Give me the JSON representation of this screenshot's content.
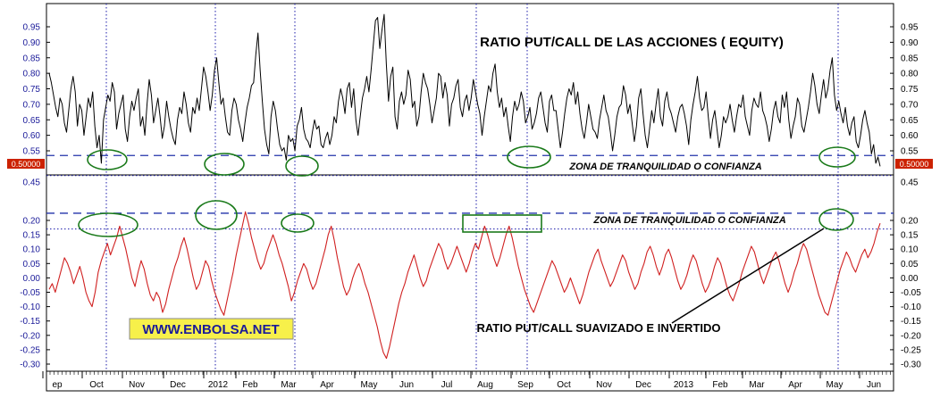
{
  "chart_data": [
    {
      "type": "line",
      "title": "RATIO PUT/CALL DE LAS ACCIONES ( EQUITY)",
      "y_ticks": [
        "0.95",
        "0.90",
        "0.85",
        "0.80",
        "0.75",
        "0.70",
        "0.65",
        "0.60",
        "0.55"
      ],
      "y_tick_extra": "0.45",
      "ylim": [
        0.47,
        0.99
      ],
      "current_value_label": "0.50000",
      "reference_line_label": "ZONA DE TRANQUILIDAD O CONFIANZA",
      "reference_line_value": 0.535,
      "series": [
        {
          "color": "#000000",
          "values": [
            0.8,
            0.77,
            0.73,
            0.69,
            0.66,
            0.72,
            0.7,
            0.64,
            0.61,
            0.68,
            0.75,
            0.79,
            0.74,
            0.63,
            0.7,
            0.68,
            0.6,
            0.66,
            0.72,
            0.69,
            0.74,
            0.63,
            0.56,
            0.6,
            0.51,
            0.65,
            0.69,
            0.73,
            0.71,
            0.77,
            0.74,
            0.62,
            0.67,
            0.7,
            0.73,
            0.62,
            0.58,
            0.66,
            0.71,
            0.68,
            0.72,
            0.75,
            0.63,
            0.66,
            0.6,
            0.7,
            0.78,
            0.73,
            0.64,
            0.68,
            0.72,
            0.66,
            0.59,
            0.63,
            0.71,
            0.66,
            0.62,
            0.59,
            0.57,
            0.65,
            0.69,
            0.67,
            0.74,
            0.7,
            0.64,
            0.61,
            0.69,
            0.67,
            0.72,
            0.68,
            0.75,
            0.82,
            0.79,
            0.74,
            0.68,
            0.73,
            0.81,
            0.85,
            0.77,
            0.7,
            0.72,
            0.66,
            0.61,
            0.6,
            0.68,
            0.72,
            0.7,
            0.65,
            0.62,
            0.58,
            0.64,
            0.69,
            0.72,
            0.76,
            0.77,
            0.86,
            0.93,
            0.81,
            0.71,
            0.62,
            0.57,
            0.54,
            0.66,
            0.71,
            0.68,
            0.62,
            0.57,
            0.55,
            0.56,
            0.52,
            0.6,
            0.58,
            0.59,
            0.55,
            0.63,
            0.65,
            0.69,
            0.62,
            0.59,
            0.58,
            0.56,
            0.61,
            0.65,
            0.62,
            0.63,
            0.57,
            0.56,
            0.59,
            0.61,
            0.57,
            0.6,
            0.66,
            0.64,
            0.71,
            0.75,
            0.72,
            0.67,
            0.75,
            0.77,
            0.69,
            0.75,
            0.65,
            0.6,
            0.66,
            0.72,
            0.75,
            0.79,
            0.74,
            0.81,
            0.89,
            0.97,
            0.98,
            0.88,
            0.94,
            0.99,
            0.83,
            0.71,
            0.79,
            0.82,
            0.66,
            0.62,
            0.71,
            0.74,
            0.7,
            0.73,
            0.81,
            0.78,
            0.69,
            0.71,
            0.63,
            0.66,
            0.74,
            0.8,
            0.77,
            0.75,
            0.7,
            0.64,
            0.68,
            0.72,
            0.8,
            0.79,
            0.72,
            0.77,
            0.73,
            0.63,
            0.7,
            0.72,
            0.76,
            0.78,
            0.69,
            0.66,
            0.71,
            0.73,
            0.68,
            0.72,
            0.78,
            0.74,
            0.7,
            0.67,
            0.6,
            0.66,
            0.71,
            0.76,
            0.74,
            0.8,
            0.83,
            0.74,
            0.69,
            0.72,
            0.66,
            0.69,
            0.63,
            0.58,
            0.66,
            0.71,
            0.68,
            0.7,
            0.74,
            0.71,
            0.64,
            0.66,
            0.69,
            0.62,
            0.64,
            0.67,
            0.72,
            0.74,
            0.69,
            0.64,
            0.61,
            0.71,
            0.73,
            0.68,
            0.68,
            0.62,
            0.56,
            0.61,
            0.67,
            0.72,
            0.75,
            0.73,
            0.77,
            0.7,
            0.74,
            0.67,
            0.62,
            0.59,
            0.64,
            0.7,
            0.66,
            0.62,
            0.61,
            0.59,
            0.65,
            0.69,
            0.73,
            0.68,
            0.66,
            0.61,
            0.55,
            0.6,
            0.66,
            0.69,
            0.7,
            0.76,
            0.73,
            0.67,
            0.7,
            0.64,
            0.58,
            0.63,
            0.72,
            0.75,
            0.67,
            0.6,
            0.56,
            0.62,
            0.68,
            0.64,
            0.7,
            0.75,
            0.66,
            0.63,
            0.71,
            0.74,
            0.69,
            0.67,
            0.64,
            0.61,
            0.66,
            0.69,
            0.7,
            0.67,
            0.63,
            0.57,
            0.65,
            0.7,
            0.74,
            0.79,
            0.72,
            0.68,
            0.69,
            0.74,
            0.66,
            0.59,
            0.65,
            0.68,
            0.62,
            0.56,
            0.6,
            0.66,
            0.64,
            0.66,
            0.7,
            0.65,
            0.61,
            0.66,
            0.7,
            0.69,
            0.73,
            0.66,
            0.63,
            0.6,
            0.68,
            0.72,
            0.7,
            0.69,
            0.74,
            0.68,
            0.66,
            0.63,
            0.58,
            0.62,
            0.68,
            0.71,
            0.66,
            0.64,
            0.73,
            0.69,
            0.74,
            0.65,
            0.59,
            0.63,
            0.66,
            0.72,
            0.7,
            0.63,
            0.61,
            0.65,
            0.69,
            0.74,
            0.8,
            0.76,
            0.7,
            0.67,
            0.73,
            0.78,
            0.72,
            0.75,
            0.81,
            0.85,
            0.73,
            0.68,
            0.71,
            0.67,
            0.64,
            0.69,
            0.63,
            0.6,
            0.64,
            0.66,
            0.58,
            0.56,
            0.6,
            0.65,
            0.68,
            0.64,
            0.61,
            0.54,
            0.57,
            0.51,
            0.53,
            0.5
          ]
        }
      ]
    },
    {
      "type": "line",
      "title": "RATIO PUT/CALL SUAVIZADO E INVERTIDO",
      "y_ticks": [
        "0.20",
        "0.15",
        "0.10",
        "0.05",
        "0.00",
        "-0.05",
        "-0.10",
        "-0.15",
        "-0.20",
        "-0.25",
        "-0.30"
      ],
      "ylim": [
        -0.32,
        0.25
      ],
      "reference_line_label": "ZONA DE TRANQUILIDAD O CONFIANZA",
      "reference_line_value": 0.225,
      "reference_line_value_2": 0.17,
      "series": [
        {
          "color": "#d02020",
          "values": [
            -0.04,
            -0.02,
            -0.05,
            -0.01,
            0.03,
            0.07,
            0.05,
            0.02,
            -0.02,
            0.01,
            0.04,
            0.0,
            -0.05,
            -0.08,
            -0.1,
            -0.05,
            0.02,
            0.06,
            0.09,
            0.12,
            0.08,
            0.11,
            0.14,
            0.18,
            0.14,
            0.1,
            0.05,
            0.0,
            -0.03,
            0.02,
            0.06,
            0.03,
            -0.02,
            -0.06,
            -0.08,
            -0.05,
            -0.07,
            -0.12,
            -0.09,
            -0.04,
            0.0,
            0.04,
            0.07,
            0.11,
            0.14,
            0.1,
            0.05,
            0.0,
            -0.04,
            -0.02,
            0.02,
            0.06,
            0.04,
            -0.01,
            -0.05,
            -0.08,
            -0.11,
            -0.13,
            -0.08,
            -0.03,
            0.02,
            0.08,
            0.13,
            0.18,
            0.23,
            0.19,
            0.14,
            0.1,
            0.06,
            0.03,
            0.05,
            0.09,
            0.12,
            0.15,
            0.12,
            0.08,
            0.05,
            0.01,
            -0.03,
            -0.08,
            -0.05,
            -0.01,
            0.02,
            0.05,
            0.03,
            -0.01,
            -0.04,
            -0.02,
            0.02,
            0.06,
            0.1,
            0.15,
            0.18,
            0.13,
            0.07,
            0.02,
            -0.03,
            -0.06,
            -0.04,
            0.0,
            0.03,
            0.05,
            0.02,
            -0.02,
            -0.05,
            -0.09,
            -0.13,
            -0.17,
            -0.22,
            -0.26,
            -0.28,
            -0.24,
            -0.19,
            -0.14,
            -0.09,
            -0.05,
            -0.02,
            0.02,
            0.05,
            0.08,
            0.04,
            0.0,
            -0.03,
            -0.01,
            0.03,
            0.06,
            0.09,
            0.12,
            0.1,
            0.06,
            0.03,
            0.05,
            0.08,
            0.11,
            0.08,
            0.05,
            0.02,
            0.05,
            0.09,
            0.12,
            0.1,
            0.14,
            0.18,
            0.15,
            0.11,
            0.07,
            0.04,
            0.07,
            0.11,
            0.15,
            0.18,
            0.14,
            0.09,
            0.04,
            0.0,
            -0.04,
            -0.07,
            -0.1,
            -0.12,
            -0.09,
            -0.06,
            -0.03,
            0.0,
            0.03,
            0.06,
            0.04,
            0.01,
            -0.02,
            -0.05,
            -0.03,
            0.0,
            -0.03,
            -0.06,
            -0.09,
            -0.06,
            -0.02,
            0.02,
            0.05,
            0.08,
            0.1,
            0.06,
            0.03,
            0.0,
            -0.03,
            -0.01,
            0.02,
            0.05,
            0.08,
            0.06,
            0.02,
            -0.01,
            -0.04,
            -0.02,
            0.02,
            0.05,
            0.09,
            0.11,
            0.08,
            0.04,
            0.01,
            0.04,
            0.08,
            0.1,
            0.07,
            0.03,
            -0.01,
            -0.04,
            -0.02,
            0.01,
            0.05,
            0.08,
            0.06,
            0.02,
            -0.02,
            -0.05,
            -0.03,
            0.0,
            0.04,
            0.07,
            0.05,
            0.01,
            -0.03,
            -0.06,
            -0.08,
            -0.05,
            -0.02,
            0.02,
            0.05,
            0.08,
            0.11,
            0.09,
            0.05,
            0.01,
            -0.02,
            0.01,
            0.04,
            0.07,
            0.09,
            0.06,
            0.02,
            -0.02,
            -0.05,
            -0.02,
            0.02,
            0.05,
            0.09,
            0.12,
            0.1,
            0.06,
            0.02,
            -0.02,
            -0.06,
            -0.09,
            -0.12,
            -0.13,
            -0.09,
            -0.05,
            -0.01,
            0.03,
            0.06,
            0.09,
            0.07,
            0.04,
            0.02,
            0.05,
            0.08,
            0.1,
            0.07,
            0.09,
            0.12,
            0.16,
            0.19
          ]
        }
      ]
    }
  ],
  "x_axis": {
    "labels": [
      "ep",
      "Oct",
      "Nov",
      "Dec",
      "2012",
      "Feb",
      "Mar",
      "Apr",
      "May",
      "Jun",
      "Jul",
      "Aug",
      "Sep",
      "Oct",
      "Nov",
      "Dec",
      "2013",
      "Feb",
      "Mar",
      "Apr",
      "May",
      "Jun"
    ]
  },
  "watermark": "WWW.ENBOLSA.NET",
  "colors": {
    "top_series": "#000000",
    "bottom_series": "#d02020",
    "reference_dash": "#2233aa",
    "grid_dot": "#1a1aaa",
    "circle": "#1a7a1a",
    "watermark_bg": "#f7f04a",
    "watermark_text": "#1a1a99",
    "badge_bg": "#cc2200"
  }
}
